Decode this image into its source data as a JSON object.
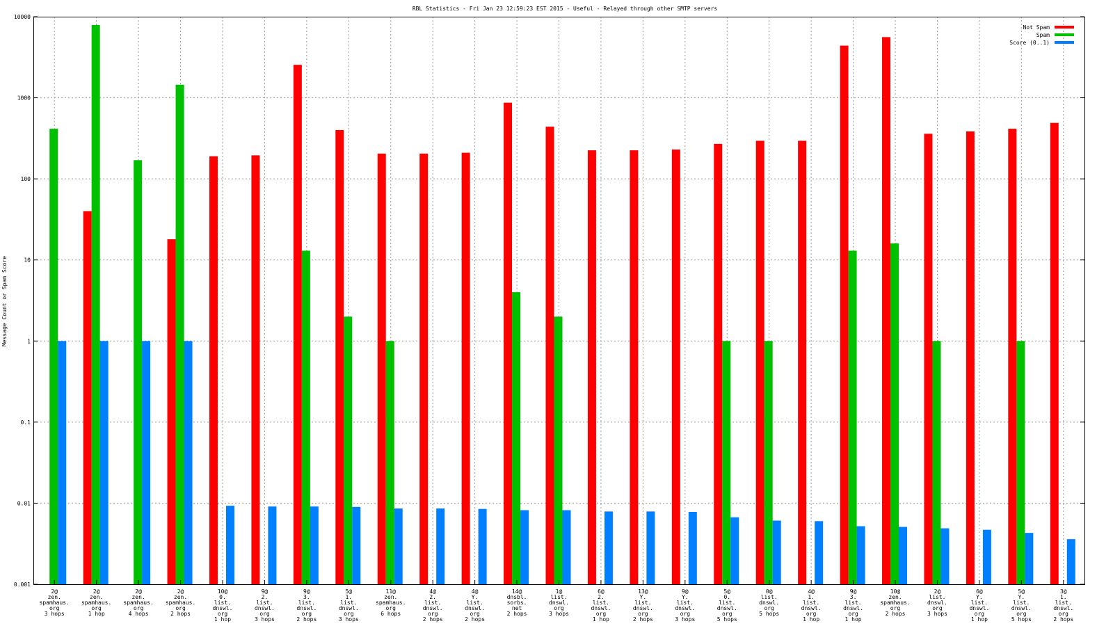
{
  "chart_data": {
    "type": "bar",
    "title": "RBL Statistics - Fri Jan 23 12:59:23 EST 2015 - Useful - Relayed through other SMTP servers",
    "ylabel": "Message Count or Spam Score",
    "xlabel": "",
    "yscale": "log",
    "ylim": [
      0.001,
      10000
    ],
    "yticks": [
      "0.001",
      "0.01",
      "0.1",
      "1",
      "10",
      "100",
      "1000",
      "10000"
    ],
    "grid": true,
    "legend_position": "top-right",
    "categories": [
      [
        "2@",
        "zen.",
        "spamhaus.",
        "org",
        "3 hops"
      ],
      [
        "2@",
        "zen.",
        "spamhaus.",
        "org",
        "1 hop"
      ],
      [
        "2@",
        "zen.",
        "spamhaus.",
        "org",
        "4 hops"
      ],
      [
        "2@",
        "zen.",
        "spamhaus.",
        "org",
        "2 hops"
      ],
      [
        "10@",
        "0.",
        "list.",
        "dnswl.",
        "org",
        "1 hop"
      ],
      [
        "9@",
        "2.",
        "list.",
        "dnswl.",
        "org",
        "3 hops"
      ],
      [
        "9@",
        "3.",
        "list.",
        "dnswl.",
        "org",
        "2 hops"
      ],
      [
        "5@",
        "1.",
        "list.",
        "dnswl.",
        "org",
        "3 hops"
      ],
      [
        "11@",
        "zen.",
        "spamhaus.",
        "org",
        "6 hops"
      ],
      [
        "4@",
        "2.",
        "list.",
        "dnswl.",
        "org",
        "2 hops"
      ],
      [
        "4@",
        "Y.",
        "list.",
        "dnswl.",
        "org",
        "2 hops"
      ],
      [
        "14@",
        "dnsbl.",
        "sorbs.",
        "net",
        "2 hops"
      ],
      [
        "1@",
        "list.",
        "dnswl.",
        "org",
        "3 hops"
      ],
      [
        "6@",
        "2.",
        "list.",
        "dnswl.",
        "org",
        "1 hop"
      ],
      [
        "13@",
        "Y.",
        "list.",
        "dnswl.",
        "org",
        "2 hops"
      ],
      [
        "9@",
        "Y.",
        "list.",
        "dnswl.",
        "org",
        "3 hops"
      ],
      [
        "5@",
        "0.",
        "list.",
        "dnswl.",
        "org",
        "5 hops"
      ],
      [
        "0@",
        "list.",
        "dnswl.",
        "org",
        "5 hops"
      ],
      [
        "4@",
        "1.",
        "list.",
        "dnswl.",
        "org",
        "1 hop"
      ],
      [
        "9@",
        "3.",
        "list.",
        "dnswl.",
        "org",
        "1 hop"
      ],
      [
        "10@",
        "zen.",
        "spamhaus.",
        "org",
        "2 hops"
      ],
      [
        "2@",
        "list.",
        "dnswl.",
        "org",
        "3 hops"
      ],
      [
        "6@",
        "Y.",
        "list.",
        "dnswl.",
        "org",
        "1 hop"
      ],
      [
        "5@",
        "Y.",
        "list.",
        "dnswl.",
        "org",
        "5 hops"
      ],
      [
        "3@",
        "1.",
        "list.",
        "dnswl.",
        "org",
        "2 hops"
      ]
    ],
    "series": [
      {
        "name": "Not Spam",
        "color": "#ff0000",
        "values": [
          null,
          40,
          null,
          18,
          190,
          195,
          2550,
          400,
          205,
          205,
          210,
          870,
          440,
          225,
          225,
          230,
          270,
          295,
          295,
          4400,
          5600,
          360,
          385,
          415,
          490
        ]
      },
      {
        "name": "Spam",
        "color": "#00c000",
        "values": [
          415,
          7900,
          170,
          1450,
          null,
          null,
          13,
          2,
          1,
          null,
          null,
          4,
          2,
          null,
          null,
          null,
          1,
          1,
          null,
          13,
          16,
          1,
          null,
          1,
          null
        ]
      },
      {
        "name": "Score (0..1)",
        "color": "#0080ff",
        "values": [
          1,
          1,
          1,
          1,
          0.0093,
          0.0091,
          0.0091,
          0.009,
          0.0086,
          0.0086,
          0.0085,
          0.0082,
          0.0082,
          0.0079,
          0.0079,
          0.0078,
          0.0067,
          0.0061,
          0.006,
          0.0052,
          0.0051,
          0.0049,
          0.0047,
          0.0043,
          0.0036
        ]
      }
    ]
  }
}
